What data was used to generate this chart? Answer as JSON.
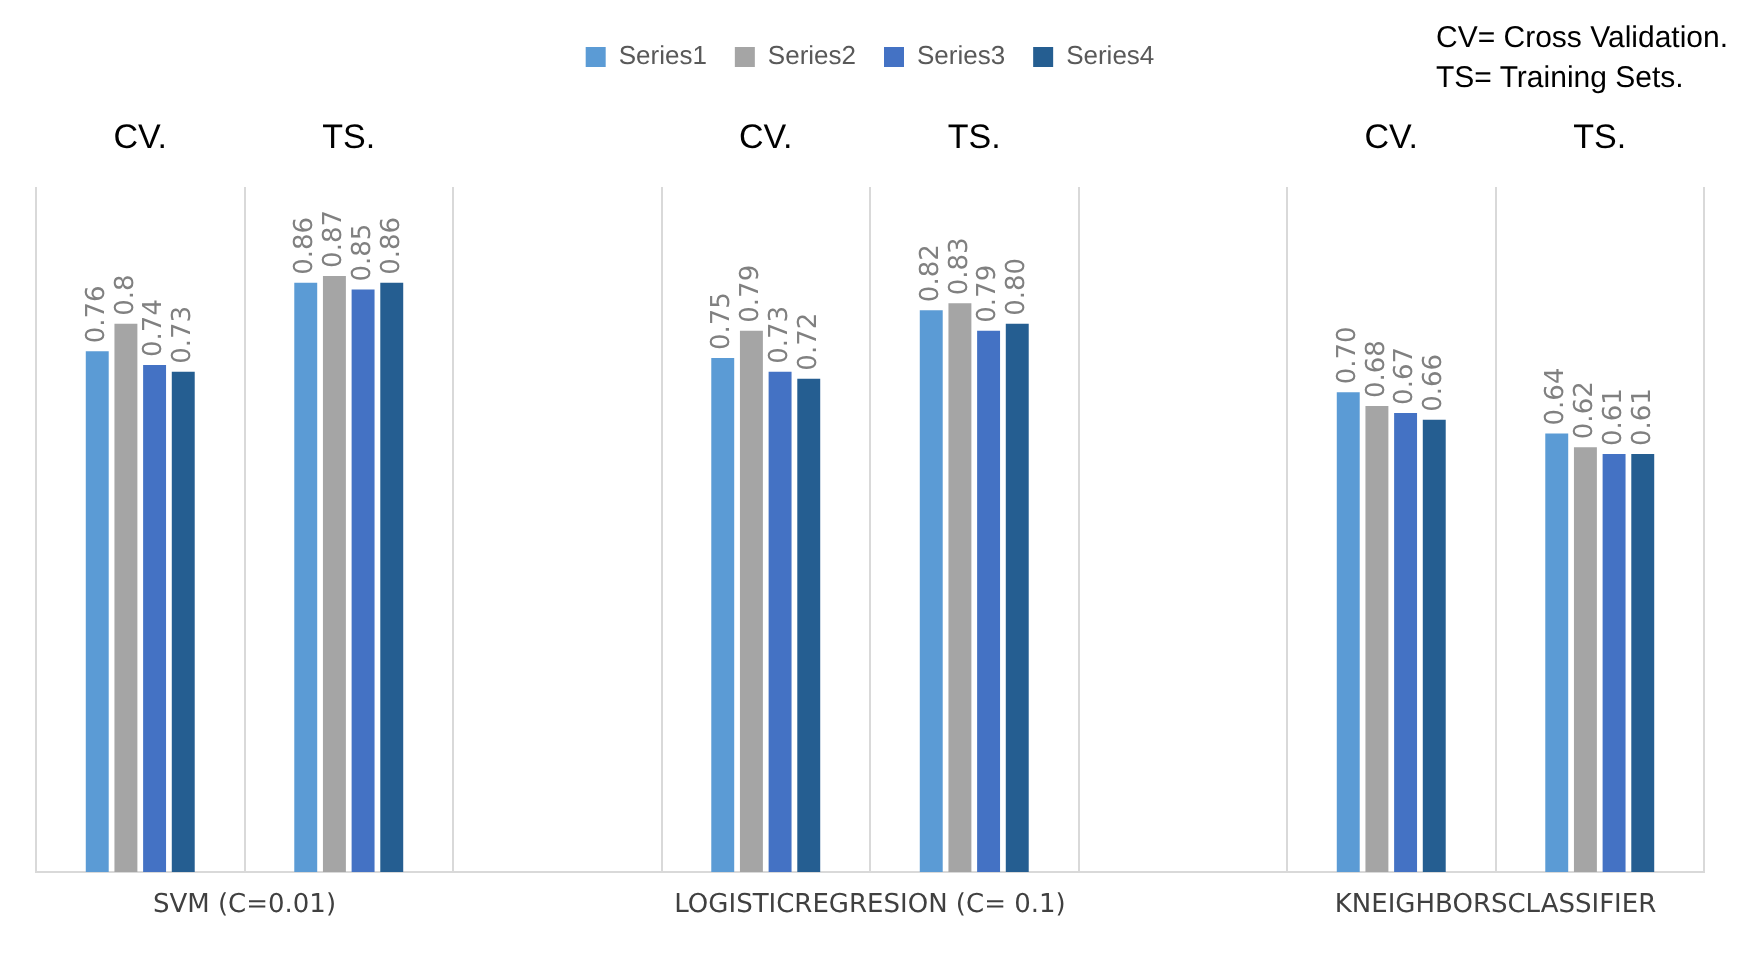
{
  "chart_data": {
    "type": "bar",
    "categories": [
      "CV.",
      "TS.",
      null,
      "CV.",
      "TS.",
      null,
      "CV.",
      "TS."
    ],
    "series": [
      {
        "name": "Series1",
        "color": "#5b9bd5",
        "values": [
          0.76,
          0.86,
          null,
          0.75,
          0.82,
          null,
          0.7,
          0.64
        ],
        "value_labels": [
          "0.76",
          "0.86",
          null,
          "0.75",
          "0.82",
          null,
          "0.70",
          "0.64"
        ]
      },
      {
        "name": "Series2",
        "color": "#a5a5a5",
        "values": [
          0.8,
          0.87,
          null,
          0.79,
          0.83,
          null,
          0.68,
          0.62
        ],
        "value_labels": [
          "0.8",
          "0.87",
          null,
          "0.79",
          "0.83",
          null,
          "0.68",
          "0.62"
        ]
      },
      {
        "name": "Series3",
        "color": "#4472c4",
        "values": [
          0.74,
          0.85,
          null,
          0.73,
          0.79,
          null,
          0.67,
          0.61
        ],
        "value_labels": [
          "0.74",
          "0.85",
          null,
          "0.73",
          "0.79",
          null,
          "0.67",
          "0.61"
        ]
      },
      {
        "name": "Series4",
        "color": "#255e91",
        "values": [
          0.73,
          0.86,
          null,
          0.72,
          0.8,
          null,
          0.66,
          0.61
        ],
        "value_labels": [
          "0.73",
          "0.86",
          null,
          "0.72",
          "0.80",
          null,
          "0.66",
          "0.61"
        ]
      }
    ],
    "ylim": [
      0,
      1
    ],
    "grid": "x",
    "legend": "top",
    "tick_labels": "x",
    "annotations": [
      "SVM (C=0.01)",
      "LOGISTICREGRESION (C= 0.1)",
      "KNEIGHBORSCLASSIFIER",
      "CV= Cross Validation.",
      "TS= Training Sets."
    ]
  }
}
